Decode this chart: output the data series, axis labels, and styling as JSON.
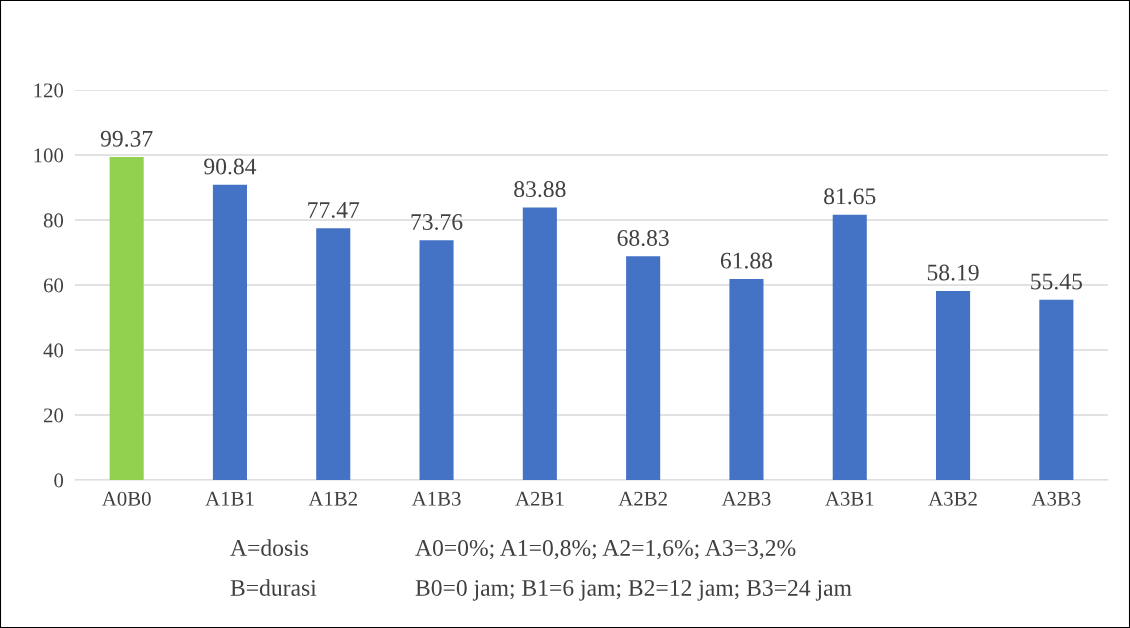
{
  "chart_data": {
    "type": "bar",
    "categories": [
      "A0B0",
      "A1B1",
      "A1B2",
      "A1B3",
      "A2B1",
      "A2B2",
      "A2B3",
      "A3B1",
      "A3B2",
      "A3B3"
    ],
    "values": [
      99.37,
      90.84,
      77.47,
      73.76,
      83.88,
      68.83,
      61.88,
      81.65,
      58.19,
      55.45
    ],
    "colors": [
      "#92d050",
      "#4472c4",
      "#4472c4",
      "#4472c4",
      "#4472c4",
      "#4472c4",
      "#4472c4",
      "#4472c4",
      "#4472c4",
      "#4472c4"
    ],
    "ylim": [
      0,
      120
    ],
    "yticks": [
      0,
      20,
      40,
      60,
      80,
      100,
      120
    ],
    "grid": "y",
    "data_labels": true,
    "legend": false,
    "annotations": [
      "A=dosis",
      "A0=0%; A1=0,8%; A2=1,6%; A3=3,2%",
      "B=durasi",
      "B0=0 jam; B1=6 jam; B2=12 jam; B3=24 jam"
    ]
  }
}
